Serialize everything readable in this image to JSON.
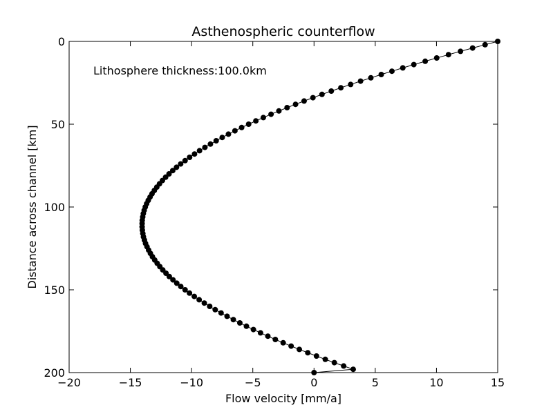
{
  "chart_data": {
    "type": "line",
    "title": "Asthenospheric counterflow",
    "xlabel": "Flow velocity [mm/a]",
    "ylabel": "Distance across channel [km]",
    "annotation": "Lithosphere thickness:100.0km",
    "xlim": [
      -20,
      15
    ],
    "ylim": [
      200,
      0
    ],
    "y_inverted": true,
    "x_ticks": [
      -20,
      -15,
      -10,
      -5,
      0,
      5,
      10,
      15
    ],
    "x_tick_labels": [
      "−20",
      "−15",
      "−10",
      "−5",
      "0",
      "5",
      "10",
      "15"
    ],
    "y_ticks": [
      0,
      50,
      100,
      150,
      200
    ],
    "y_tick_labels": [
      "0",
      "50",
      "100",
      "150",
      "200"
    ],
    "grid": false,
    "legend": "none",
    "series": [
      {
        "marker": "circle",
        "color": "#000000",
        "y": [
          0,
          2,
          4,
          6,
          8,
          10,
          12,
          14,
          16,
          18,
          20,
          22,
          24,
          26,
          28,
          30,
          32,
          34,
          36,
          38,
          40,
          42,
          44,
          46,
          48,
          50,
          52,
          54,
          56,
          58,
          60,
          62,
          64,
          66,
          68,
          70,
          72,
          74,
          76,
          78,
          80,
          82,
          84,
          86,
          88,
          90,
          92,
          94,
          96,
          98,
          100,
          102,
          104,
          106,
          108,
          110,
          112,
          114,
          116,
          118,
          120,
          122,
          124,
          126,
          128,
          130,
          132,
          134,
          136,
          138,
          140,
          142,
          144,
          146,
          148,
          150,
          152,
          154,
          156,
          158,
          160,
          162,
          164,
          166,
          168,
          170,
          172,
          174,
          176,
          178,
          180,
          182,
          184,
          186,
          188,
          190,
          192,
          194,
          196,
          198,
          200
        ],
        "x": [
          15.0,
          13.97,
          12.95,
          11.96,
          10.98,
          10.02,
          9.08,
          8.15,
          7.25,
          6.36,
          5.49,
          4.64,
          3.8,
          2.99,
          2.19,
          1.41,
          0.65,
          -0.09,
          -0.81,
          -1.51,
          -2.2,
          -2.87,
          -3.51,
          -4.14,
          -4.75,
          -5.34,
          -5.91,
          -6.46,
          -6.99,
          -7.5,
          -7.99,
          -8.46,
          -8.91,
          -9.35,
          -9.76,
          -10.16,
          -10.53,
          -10.89,
          -11.23,
          -11.54,
          -11.84,
          -12.12,
          -12.38,
          -12.62,
          -12.84,
          -13.04,
          -13.23,
          -13.39,
          -13.54,
          -13.67,
          -13.78,
          -13.87,
          -13.94,
          -13.99,
          -14.03,
          -14.04,
          -14.04,
          -14.02,
          -13.98,
          -13.93,
          -13.85,
          -13.76,
          -13.64,
          -13.51,
          -13.36,
          -13.2,
          -13.01,
          -12.81,
          -12.59,
          -12.35,
          -12.09,
          -11.82,
          -11.52,
          -11.21,
          -10.88,
          -10.53,
          -10.17,
          -9.78,
          -9.38,
          -8.96,
          -8.52,
          -8.07,
          -7.59,
          -7.1,
          -6.59,
          -6.06,
          -5.52,
          -4.95,
          -4.37,
          -3.77,
          -3.16,
          -2.52,
          -1.87,
          -1.2,
          -0.51,
          0.2,
          0.92,
          1.66,
          2.42,
          3.2,
          0.0
        ]
      }
    ]
  }
}
